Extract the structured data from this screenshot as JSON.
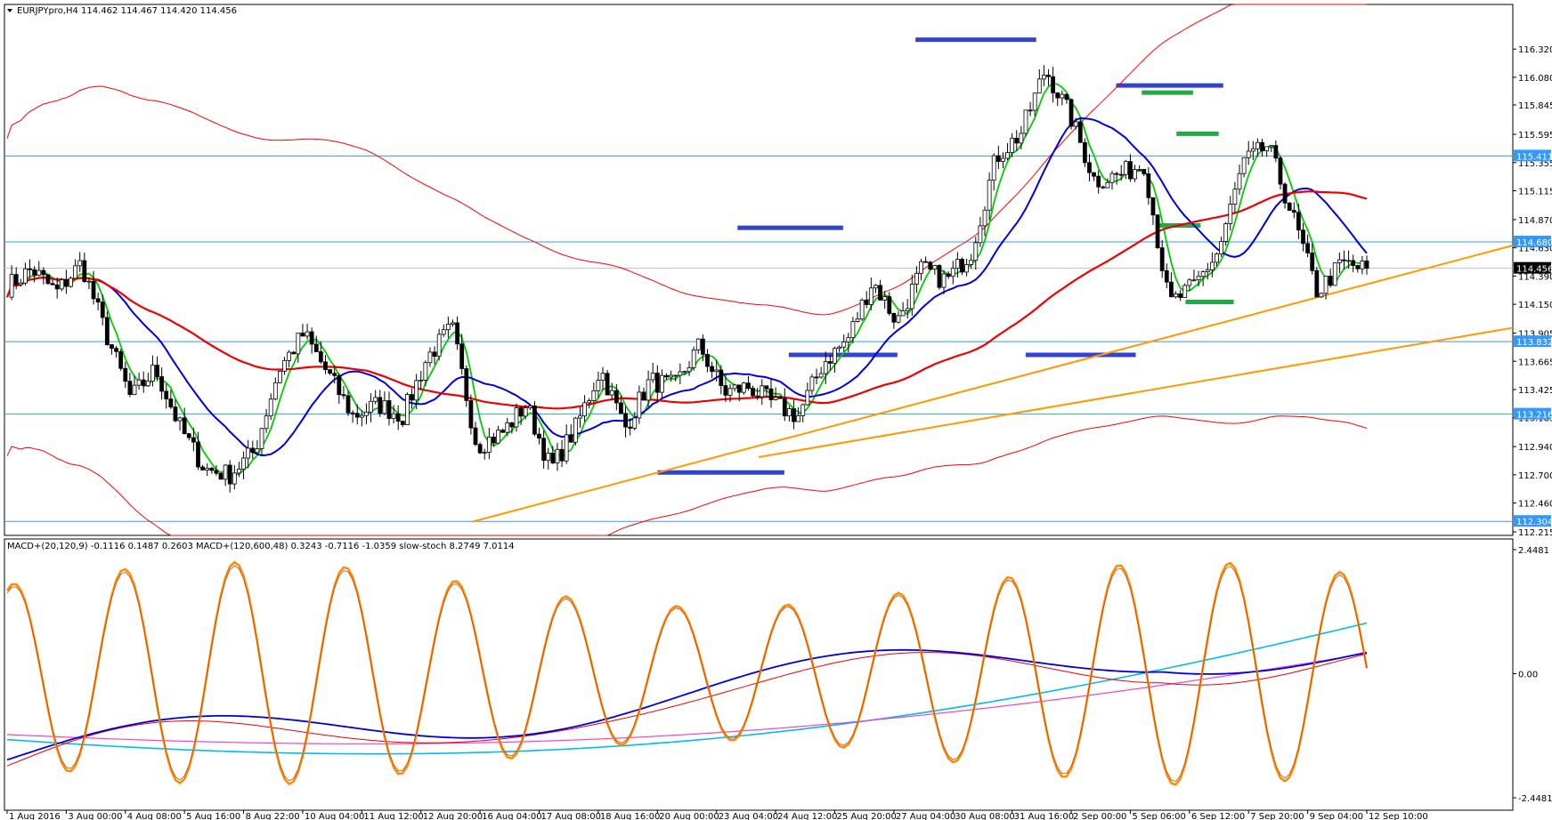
{
  "window": {
    "symbol_line": "EURJPYpro,H4  114.462 114.467 114.420 114.456"
  },
  "indicator_header": "MACD+(20,120,9) -0.1116 0.1487 0.2603  MACD+(120,600,48) 0.3243 -0.7116 -1.0359  slow-stoch 8.2749 7.0114",
  "chart_data": {
    "type": "candlestick",
    "symbol": "EURJPYpro",
    "timeframe": "H4",
    "ohlc_header": [
      114.462,
      114.467,
      114.42,
      114.456
    ],
    "last_price": 114.456,
    "price_axis": {
      "ylim": [
        112.215,
        116.465
      ],
      "ticks": [
        116.32,
        116.08,
        115.845,
        115.595,
        115.355,
        115.115,
        114.87,
        114.63,
        114.39,
        114.15,
        113.905,
        113.665,
        113.425,
        113.185,
        112.94,
        112.7,
        112.46,
        112.215
      ],
      "tick_labels": [
        "116.320",
        "116.080",
        "115.845",
        "115.595",
        "115.355",
        "115.115",
        "114.870",
        "114.630",
        "114.390",
        "114.150",
        "113.905",
        "113.665",
        "113.425",
        "113.185",
        "112.940",
        "112.700",
        "112.460",
        "112.215"
      ],
      "current_label": "114.456"
    },
    "horizontal_levels": [
      {
        "value": 115.411,
        "label": "115.411",
        "color": "#3399ff"
      },
      {
        "value": 114.68,
        "label": "114.680",
        "color": "#3399ff"
      },
      {
        "value": 113.832,
        "label": "113.832",
        "color": "#3399ff"
      },
      {
        "value": 113.216,
        "label": "113.216",
        "color": "#3399ff"
      },
      {
        "value": 112.304,
        "label": "112.304",
        "color": "#3399ff"
      }
    ],
    "x_axis_labels": [
      "1 Aug 2016",
      "3 Aug 00:00",
      "4 Aug 08:00",
      "5 Aug 16:00",
      "8 Aug 22:00",
      "10 Aug 04:00",
      "11 Aug 12:00",
      "12 Aug 20:00",
      "16 Aug 04:00",
      "17 Aug 08:00",
      "18 Aug 16:00",
      "20 Aug 00:00",
      "23 Aug 04:00",
      "24 Aug 12:00",
      "25 Aug 20:00",
      "27 Aug 04:00",
      "30 Aug 08:00",
      "31 Aug 16:00",
      "2 Sep 00:00",
      "5 Sep 06:00",
      "6 Sep 12:00",
      "7 Sep 20:00",
      "9 Sep 04:00",
      "12 Sep 10:00"
    ],
    "close_path": [
      114.3,
      114.45,
      114.25,
      114.5,
      113.9,
      113.35,
      113.6,
      113.1,
      112.75,
      112.7,
      112.9,
      113.6,
      113.9,
      113.55,
      113.2,
      113.3,
      113.2,
      113.7,
      113.95,
      112.95,
      113.05,
      113.3,
      112.75,
      113.1,
      113.6,
      113.1,
      113.5,
      113.45,
      113.8,
      113.4,
      113.45,
      113.3,
      113.2,
      113.65,
      113.85,
      114.35,
      114.0,
      114.45,
      114.35,
      114.6,
      115.4,
      115.6,
      116.15,
      115.75,
      115.2,
      115.25,
      115.35,
      114.15,
      114.3,
      114.6,
      115.35,
      115.5,
      114.9,
      114.25,
      114.5,
      114.44
    ],
    "indicator": {
      "name": "MACD+ / slow-stoch",
      "ylim": [
        -2.4481,
        2.4481
      ],
      "tick_labels": [
        "2.4481",
        "0.00",
        "-2.4481"
      ],
      "values": {
        "macd_20_120_9": [
          -0.1116,
          0.1487,
          0.2603
        ],
        "macd_120_600_48": [
          0.3243,
          -0.7116,
          -1.0359
        ],
        "slow_stoch": [
          8.2749,
          7.0114
        ]
      }
    },
    "colors": {
      "bull_candle": "#ffffff",
      "bear_candle": "#000000",
      "ma_fast": "#00cc00",
      "ma_mid": "#0000dd",
      "ma_slow": "#ee0000",
      "envelope": "#ff0000",
      "trendline": "#ff9900",
      "level_line": "#3399ff",
      "zone_blue": "#3344cc",
      "zone_green": "#22aa44",
      "stoch": "#ff8800",
      "macd_long": "#00bbee",
      "macd_long_signal": "#ee44cc"
    }
  }
}
